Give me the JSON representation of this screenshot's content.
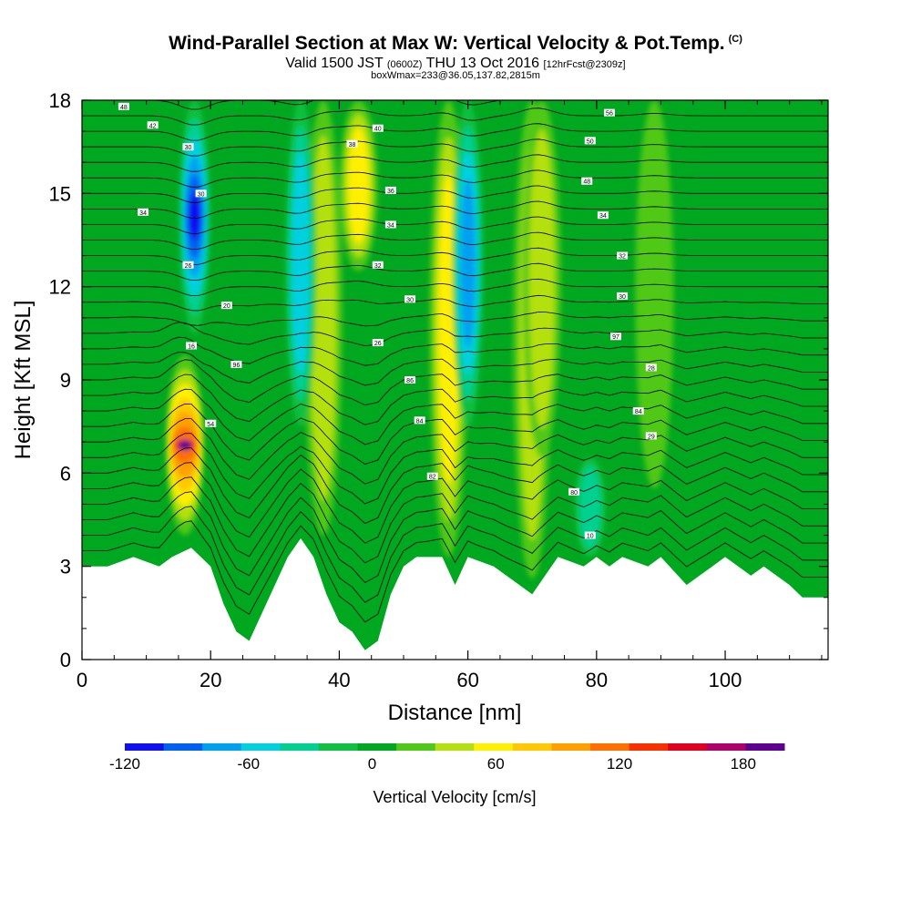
{
  "title": {
    "main": "Wind-Parallel Section at Max W: Vertical Velocity & Pot.Temp.",
    "copyright": "(C)",
    "valid_prefix": "Valid 1500 JST",
    "valid_z": "(0600Z)",
    "valid_date": "THU 13 Oct 2016",
    "forecast": "[12hrFcst@2309z]",
    "box_info": "boxWmax=233@36.05,137.82,2815m"
  },
  "chart_data": {
    "type": "heatmap",
    "xlabel": "Distance [nm]",
    "ylabel": "Height [Kft MSL]",
    "xlim": [
      0,
      116
    ],
    "ylim": [
      0,
      18
    ],
    "xticks": [
      0,
      20,
      40,
      60,
      80,
      100
    ],
    "yticks": [
      0,
      3,
      6,
      9,
      12,
      15,
      18
    ],
    "grid": false,
    "colorbar": {
      "label": "Vertical Velocity [cm/s]",
      "range": [
        -120,
        200
      ],
      "step": 20,
      "tick_values": [
        -120,
        -60,
        0,
        60,
        120,
        180
      ],
      "tick_labels": [
        "-120",
        "-60",
        "0",
        "60",
        "120",
        "180"
      ],
      "colors": [
        "#1010f0",
        "#0060f0",
        "#00a0f0",
        "#00d0e0",
        "#00d090",
        "#10c040",
        "#00a820",
        "#50c818",
        "#b4e010",
        "#fff000",
        "#ffc800",
        "#ffa000",
        "#ff7000",
        "#f83000",
        "#e00020",
        "#b0006a",
        "#600090"
      ]
    },
    "terrain": [
      [
        0,
        3.0
      ],
      [
        4,
        3.0
      ],
      [
        8,
        3.3
      ],
      [
        12,
        3.0
      ],
      [
        14,
        3.3
      ],
      [
        17,
        3.6
      ],
      [
        20,
        3.0
      ],
      [
        22,
        1.8
      ],
      [
        24,
        0.9
      ],
      [
        26,
        0.6
      ],
      [
        28,
        1.5
      ],
      [
        30,
        2.4
      ],
      [
        32,
        3.3
      ],
      [
        34,
        3.9
      ],
      [
        36,
        3.3
      ],
      [
        38,
        2.1
      ],
      [
        40,
        1.2
      ],
      [
        42,
        0.9
      ],
      [
        44,
        0.3
      ],
      [
        46,
        0.6
      ],
      [
        48,
        2.1
      ],
      [
        50,
        3.0
      ],
      [
        52,
        3.3
      ],
      [
        56,
        3.3
      ],
      [
        58,
        2.4
      ],
      [
        60,
        3.3
      ],
      [
        64,
        3.0
      ],
      [
        68,
        2.4
      ],
      [
        70,
        2.1
      ],
      [
        72,
        2.7
      ],
      [
        74,
        3.3
      ],
      [
        78,
        3.0
      ],
      [
        80,
        3.3
      ],
      [
        82,
        3.0
      ],
      [
        84,
        3.3
      ],
      [
        88,
        3.0
      ],
      [
        90,
        3.3
      ],
      [
        94,
        2.4
      ],
      [
        96,
        2.7
      ],
      [
        98,
        3.0
      ],
      [
        100,
        3.3
      ],
      [
        104,
        2.7
      ],
      [
        106,
        3.0
      ],
      [
        110,
        2.4
      ],
      [
        112,
        2.0
      ],
      [
        116,
        2.0
      ]
    ],
    "updraft_cores": [
      {
        "x": 16,
        "ybot": 4.0,
        "ytop": 9.8,
        "w": 200
      },
      {
        "x": 37.5,
        "ybot": 4.0,
        "ytop": 18,
        "w": 55
      },
      {
        "x": 43,
        "ybot": 12.5,
        "ytop": 18,
        "w": 70
      },
      {
        "x": 57,
        "ybot": 3.3,
        "ytop": 18,
        "w": 60
      },
      {
        "x": 70,
        "ybot": 2.6,
        "ytop": 18,
        "w": 55
      },
      {
        "x": 71.5,
        "ybot": 6.5,
        "ytop": 18,
        "w": 50
      },
      {
        "x": 89,
        "ybot": 5.5,
        "ytop": 18,
        "w": 30
      }
    ],
    "downdraft_cores": [
      {
        "x": 17.5,
        "ybot": 10.5,
        "ytop": 18,
        "w": -120
      },
      {
        "x": 34,
        "ybot": 7.5,
        "ytop": 18,
        "w": -70
      },
      {
        "x": 60,
        "ybot": 7.5,
        "ytop": 18,
        "w": -80
      },
      {
        "x": 79,
        "ybot": 3.3,
        "ytop": 6.5,
        "w": -40
      }
    ],
    "isentrope_labels": [
      {
        "x": 6.5,
        "y": 17.8,
        "t": "48"
      },
      {
        "x": 11,
        "y": 17.2,
        "t": "42"
      },
      {
        "x": 16.5,
        "y": 16.5,
        "t": "30"
      },
      {
        "x": 18.5,
        "y": 15.0,
        "t": "30"
      },
      {
        "x": 9.5,
        "y": 14.4,
        "t": "34"
      },
      {
        "x": 16.5,
        "y": 12.7,
        "t": "26"
      },
      {
        "x": 22.5,
        "y": 11.4,
        "t": "20"
      },
      {
        "x": 17,
        "y": 10.1,
        "t": "16"
      },
      {
        "x": 24,
        "y": 9.5,
        "t": "96"
      },
      {
        "x": 20,
        "y": 7.6,
        "t": "54"
      },
      {
        "x": 42,
        "y": 16.6,
        "t": "38"
      },
      {
        "x": 46,
        "y": 17.1,
        "t": "40"
      },
      {
        "x": 48,
        "y": 15.1,
        "t": "36"
      },
      {
        "x": 48,
        "y": 14.0,
        "t": "34"
      },
      {
        "x": 46,
        "y": 12.7,
        "t": "32"
      },
      {
        "x": 51,
        "y": 11.6,
        "t": "30"
      },
      {
        "x": 46,
        "y": 10.2,
        "t": "26"
      },
      {
        "x": 51,
        "y": 9.0,
        "t": "86"
      },
      {
        "x": 52.5,
        "y": 7.7,
        "t": "84"
      },
      {
        "x": 54.5,
        "y": 5.9,
        "t": "82"
      },
      {
        "x": 82,
        "y": 17.6,
        "t": "56"
      },
      {
        "x": 79,
        "y": 16.7,
        "t": "50"
      },
      {
        "x": 78.5,
        "y": 15.4,
        "t": "48"
      },
      {
        "x": 81,
        "y": 14.3,
        "t": "34"
      },
      {
        "x": 84,
        "y": 13.0,
        "t": "32"
      },
      {
        "x": 84,
        "y": 11.7,
        "t": "30"
      },
      {
        "x": 83,
        "y": 10.4,
        "t": "97"
      },
      {
        "x": 88.5,
        "y": 9.4,
        "t": "28"
      },
      {
        "x": 86.5,
        "y": 8.0,
        "t": "84"
      },
      {
        "x": 88.5,
        "y": 7.2,
        "t": "29"
      },
      {
        "x": 76.5,
        "y": 5.4,
        "t": "80"
      },
      {
        "x": 79,
        "y": 4.0,
        "t": "10"
      }
    ]
  }
}
